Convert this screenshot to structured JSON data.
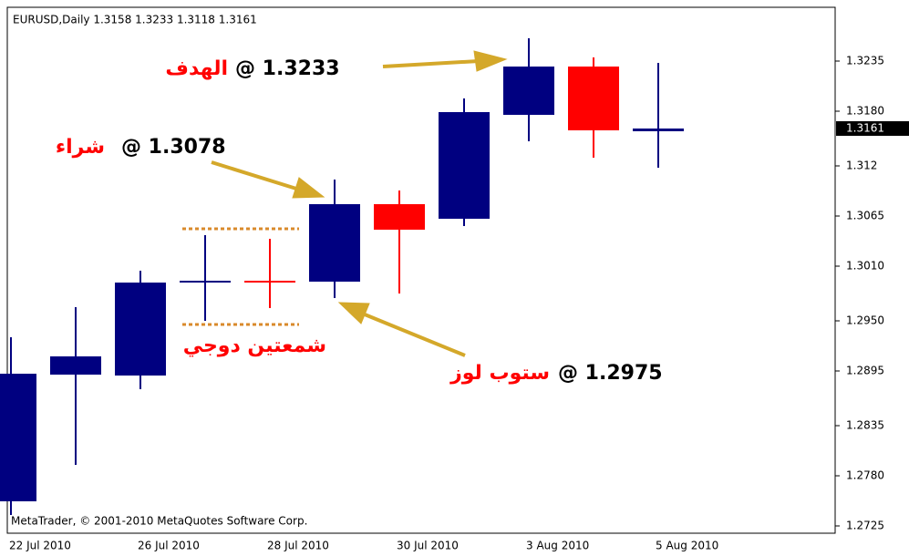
{
  "chart_data": {
    "type": "candlestick",
    "title": "EURUSD,Daily 1.3158 1.3233 1.3118 1.3161",
    "footer": "MetaTrader, © 2001-2010 MetaQuotes Software Corp.",
    "categories": [
      "22 Jul 2010",
      null,
      "26 Jul 2010",
      null,
      "28 Jul 2010",
      null,
      "30 Jul 2010",
      null,
      "3 Aug 2010",
      null,
      "5 Aug 2010"
    ],
    "open": [
      1.2752,
      1.2891,
      1.289,
      1.2993,
      1.2994,
      1.2993,
      1.3078,
      1.3062,
      1.3176,
      1.3229,
      1.3158
    ],
    "high": [
      1.2932,
      1.2965,
      1.3005,
      1.3044,
      1.304,
      1.3105,
      1.3093,
      1.3194,
      1.326,
      1.3239,
      1.3233
    ],
    "low": [
      1.2737,
      1.2792,
      1.2875,
      1.295,
      1.2964,
      1.2975,
      1.298,
      1.3054,
      1.3147,
      1.3129,
      1.3118
    ],
    "close": [
      1.2892,
      1.2911,
      1.2992,
      1.2993,
      1.2992,
      1.3078,
      1.305,
      1.3179,
      1.3229,
      1.3159,
      1.3161
    ],
    "up_color": "#000080",
    "down_color": "#ff0000",
    "current_price": 1.3161,
    "ylim": [
      1.2717,
      1.3294
    ],
    "yticks": [
      1.3235,
      {
        "value": 1.318,
        "label": "1.3180"
      },
      1.312,
      1.3065,
      {
        "value": 1.301,
        "label": "1.3010"
      },
      {
        "value": 1.295,
        "label": "1.2950"
      },
      1.2895,
      1.2835,
      {
        "value": 1.278,
        "label": "1.2780"
      },
      1.2725
    ],
    "annotations": [
      {
        "label": "الهدف",
        "text": "@ 1.3233"
      },
      {
        "label": "شراء",
        "text": "@ 1.3078"
      },
      {
        "label": "شمعتين دوجي"
      },
      {
        "label": "ستوب لوز",
        "text": "@ 1.2975"
      }
    ]
  }
}
